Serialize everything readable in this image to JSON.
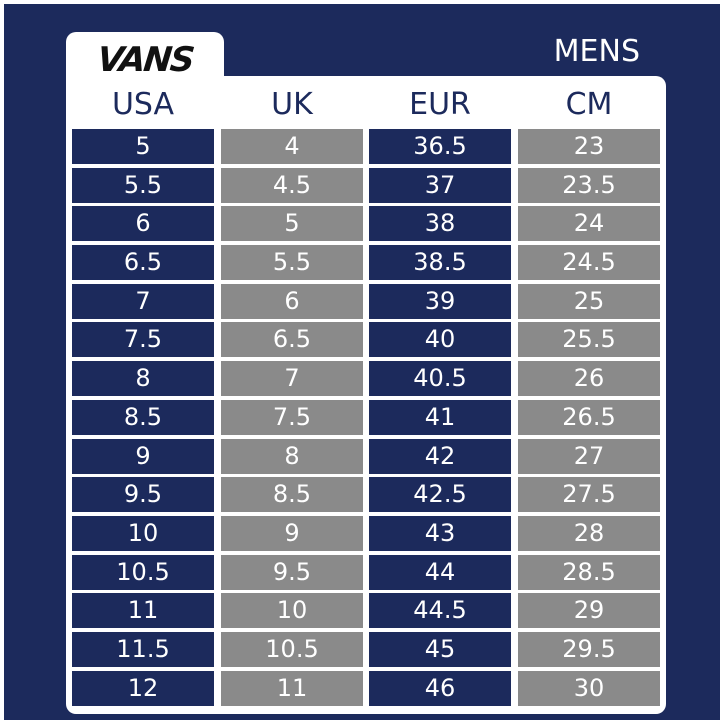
{
  "brand": {
    "logo_text": "VANS"
  },
  "title": "MENS",
  "headers": [
    "USA",
    "UK",
    "EUR",
    "CM"
  ],
  "colors": {
    "navy": "#1c2a5c",
    "grey": "#8a8a8a",
    "white": "#ffffff"
  },
  "rows": [
    [
      "5",
      "4",
      "36.5",
      "23"
    ],
    [
      "5.5",
      "4.5",
      "37",
      "23.5"
    ],
    [
      "6",
      "5",
      "38",
      "24"
    ],
    [
      "6.5",
      "5.5",
      "38.5",
      "24.5"
    ],
    [
      "7",
      "6",
      "39",
      "25"
    ],
    [
      "7.5",
      "6.5",
      "40",
      "25.5"
    ],
    [
      "8",
      "7",
      "40.5",
      "26"
    ],
    [
      "8.5",
      "7.5",
      "41",
      "26.5"
    ],
    [
      "9",
      "8",
      "42",
      "27"
    ],
    [
      "9.5",
      "8.5",
      "42.5",
      "27.5"
    ],
    [
      "10",
      "9",
      "43",
      "28"
    ],
    [
      "10.5",
      "9.5",
      "44",
      "28.5"
    ],
    [
      "11",
      "10",
      "44.5",
      "29"
    ],
    [
      "11.5",
      "10.5",
      "45",
      "29.5"
    ],
    [
      "12",
      "11",
      "46",
      "30"
    ]
  ]
}
